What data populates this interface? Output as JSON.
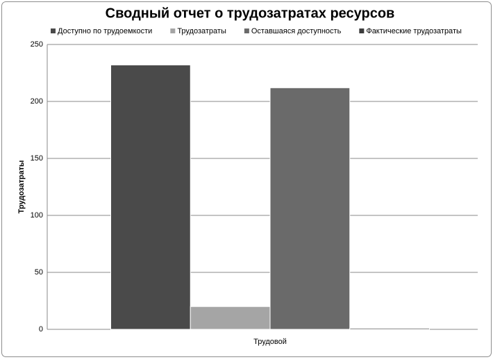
{
  "chart_data": {
    "type": "bar",
    "title": "Сводный отчет о трудозатратах ресурсов",
    "y_label": "Трудозатраты",
    "categories": [
      "Трудовой"
    ],
    "series": [
      {
        "name": "Доступно по трудоемкости",
        "color": "#4a4a4a",
        "values": [
          232
        ]
      },
      {
        "name": "Трудозатраты",
        "color": "#a5a5a5",
        "values": [
          20
        ]
      },
      {
        "name": "Оставшаяся доступность",
        "color": "#6a6a6a",
        "values": [
          212
        ]
      },
      {
        "name": "Фактические трудозатраты",
        "color": "#3c3c3c",
        "values": [
          1
        ]
      }
    ],
    "ylim": [
      0,
      250
    ],
    "yticks": [
      0,
      50,
      100,
      150,
      200,
      250
    ],
    "grid": true
  }
}
